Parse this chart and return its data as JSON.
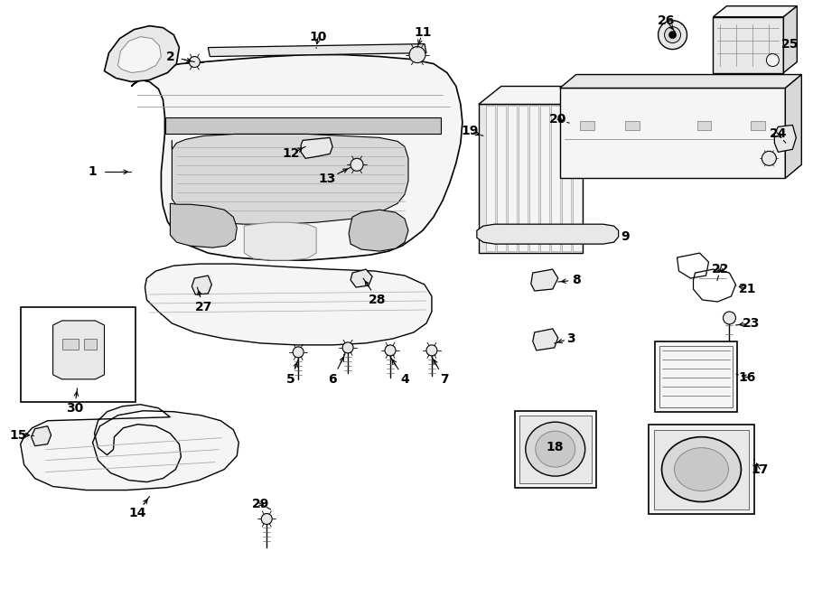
{
  "bg_color": "#ffffff",
  "line_color": "#000000",
  "fig_width": 9.0,
  "fig_height": 6.62,
  "dpi": 100
}
